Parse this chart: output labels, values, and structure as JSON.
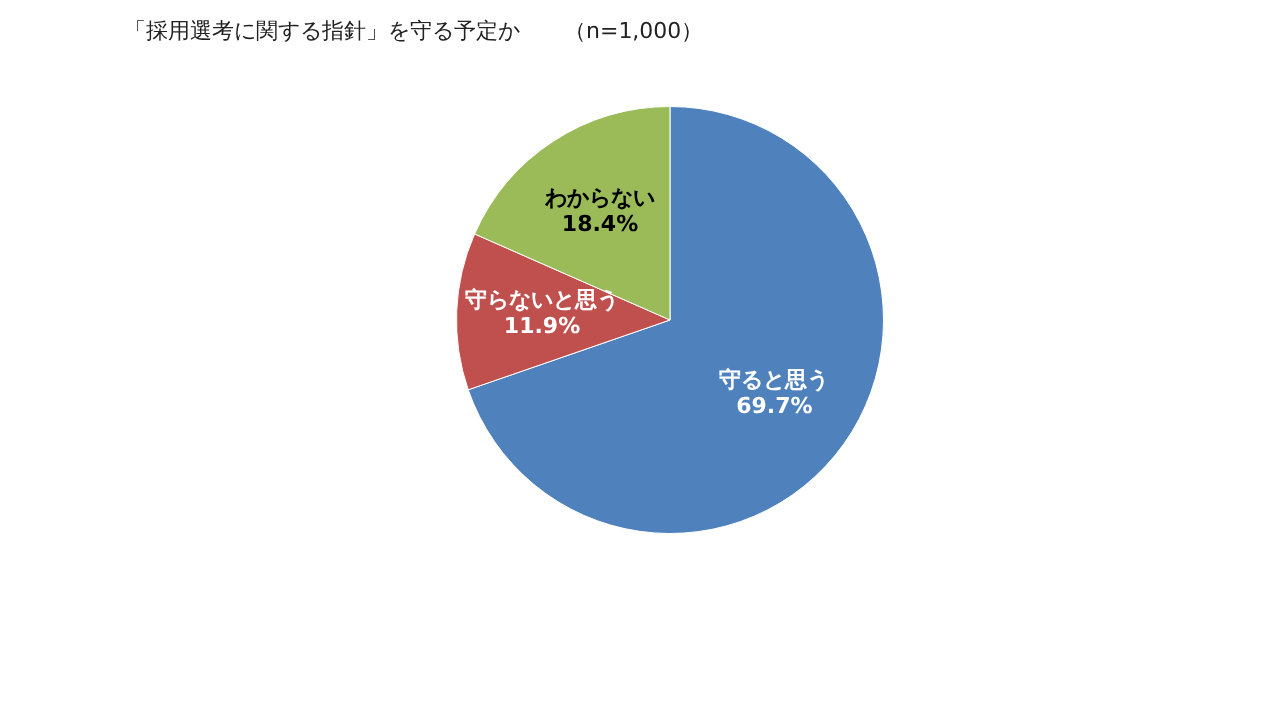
{
  "chart_data": {
    "type": "pie",
    "title": "「採用選考に関する指針」を守る予定か　　（n=1,000）",
    "categories": [
      "守ると思う",
      "守らないと思う",
      "わからない"
    ],
    "values": [
      69.7,
      11.9,
      18.4
    ],
    "value_labels": [
      "69.7%",
      "11.9%",
      "18.4%"
    ],
    "colors": [
      "#4f81bd",
      "#c0504d",
      "#9bbb59"
    ],
    "legend": false
  }
}
